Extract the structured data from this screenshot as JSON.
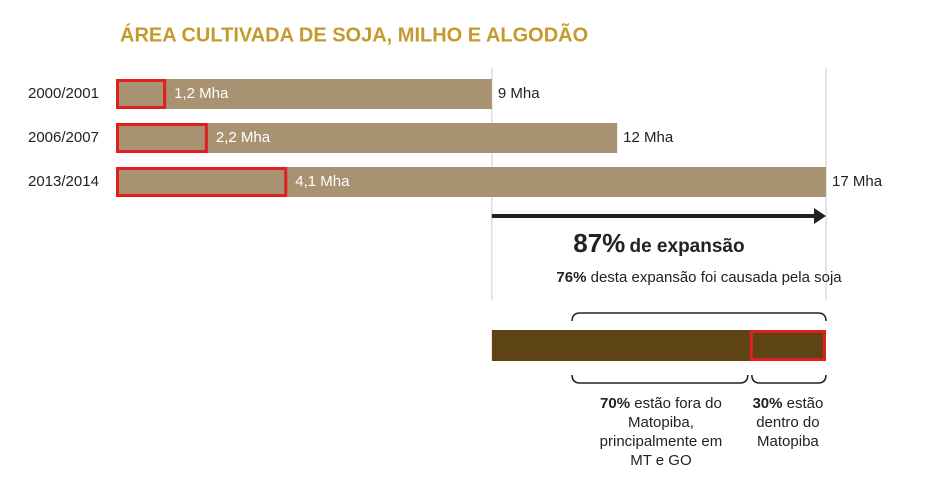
{
  "chart_data": {
    "type": "bar",
    "title": "ÁREA CULTIVADA DE SOJA, MILHO E ALGODÃO",
    "categories": [
      "2000/2001",
      "2006/2007",
      "2013/2014"
    ],
    "values": [
      9,
      12,
      17
    ],
    "value_labels": [
      "9 Mha",
      "12 Mha",
      "17 Mha"
    ],
    "color": "#a89272",
    "highlight": {
      "values": [
        1.2,
        2.2,
        4.1
      ],
      "value_labels": [
        "1,2 Mha",
        "2,2 Mha",
        "4,1 Mha"
      ],
      "color": "#e02020"
    },
    "xlim": [
      0,
      17
    ],
    "expansion": {
      "values": [
        87
      ],
      "value_labels": [
        "87%"
      ],
      "text": "de expansão"
    },
    "soy": {
      "values": [
        76
      ],
      "value_labels": [
        "76%"
      ],
      "text": "desta expansão foi causada pela soja"
    },
    "split": {
      "values": [
        70,
        30
      ],
      "value_labels": [
        "70%",
        "30%"
      ],
      "texts": [
        "estão fora do Matopiba, principalmente em MT e GO",
        "estão dentro do Matopiba"
      ],
      "color": "#5e4415"
    }
  }
}
